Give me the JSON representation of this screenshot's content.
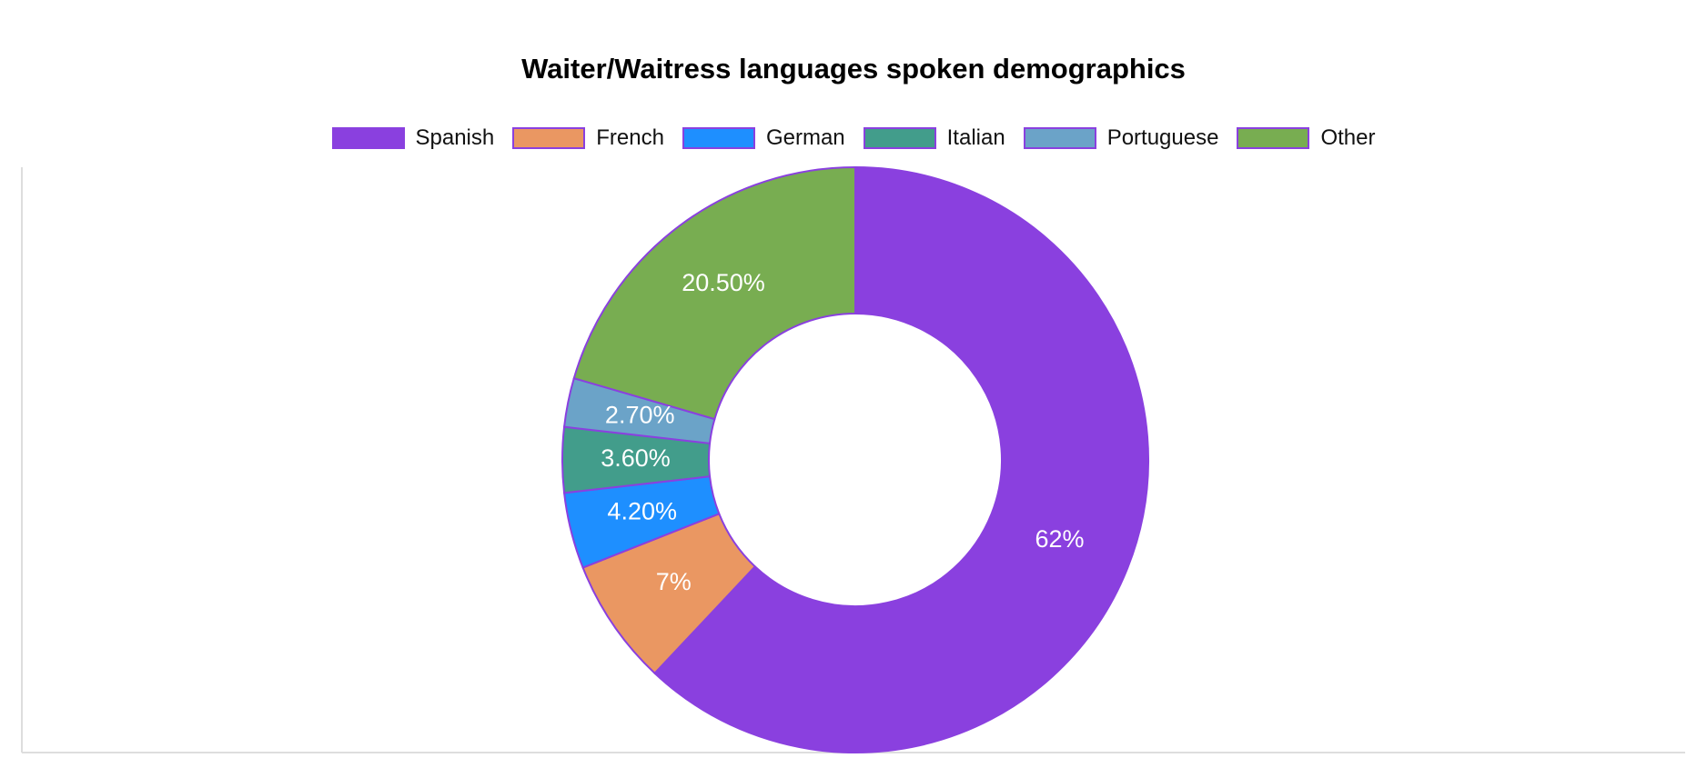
{
  "chart_data": {
    "type": "pie",
    "title": "Waiter/Waitress languages spoken demographics",
    "legend_position": "top",
    "donut": true,
    "categories": [
      "Spanish",
      "French",
      "German",
      "Italian",
      "Portuguese",
      "Other"
    ],
    "values": [
      62,
      7,
      4.2,
      3.6,
      2.7,
      20.5
    ],
    "value_labels": [
      "62%",
      "7%",
      "4.20%",
      "3.60%",
      "2.70%",
      "20.50%"
    ],
    "colors": [
      "#8a40df",
      "#ea9762",
      "#1e8fff",
      "#429d8b",
      "#6ba3c8",
      "#78ad51"
    ],
    "slice_border_color": "#8a40df"
  }
}
